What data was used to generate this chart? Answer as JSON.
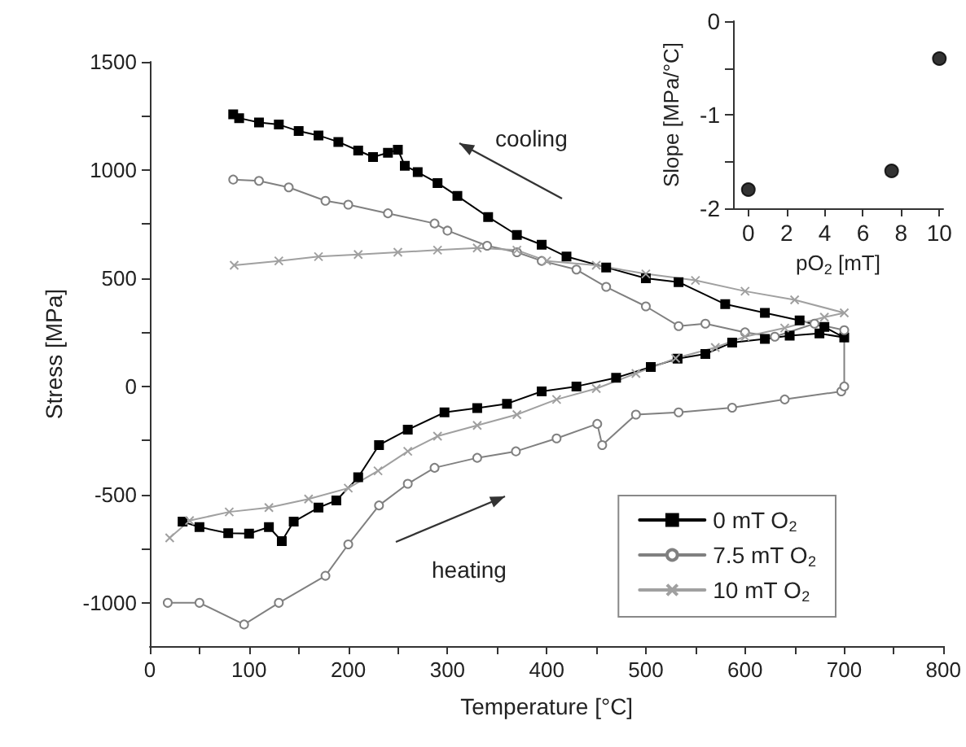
{
  "chart_data": [
    {
      "type": "line",
      "xlabel": "Temperature [°C]",
      "ylabel": "Stress [MPa]",
      "xlim": [
        0,
        800
      ],
      "ylim": [
        -1200,
        1500
      ],
      "xticks": [
        0,
        {
          "value": 50,
          "label": null
        },
        100,
        {
          "value": 150,
          "label": null
        },
        200,
        {
          "value": 250,
          "label": null
        },
        300,
        {
          "value": 350,
          "label": null
        },
        400,
        {
          "value": 450,
          "label": null
        },
        500,
        {
          "value": 550,
          "label": null
        },
        600,
        {
          "value": 650,
          "label": null
        },
        700,
        {
          "value": 750,
          "label": null
        },
        800
      ],
      "yticks": [
        -1000,
        {
          "value": -750,
          "label": null
        },
        -500,
        {
          "value": -250,
          "label": null
        },
        0,
        {
          "value": 250,
          "label": null
        },
        500,
        {
          "value": 750,
          "label": null
        },
        1000,
        {
          "value": 1250,
          "label": null
        },
        1500
      ],
      "grid": false,
      "legend": "bottom right",
      "annotations": [
        "cooling",
        "heating"
      ],
      "series": [
        {
          "name": "0 mT O$_{2}$",
          "color": "#000000",
          "marker": "square",
          "x": [
            33,
            50,
            79,
            100,
            120,
            133,
            145,
            170,
            188,
            210,
            231,
            260,
            297,
            330,
            360,
            395,
            430,
            470,
            505,
            532,
            560,
            587,
            620,
            645,
            675,
            700,
            680,
            655,
            620,
            580,
            533,
            500,
            460,
            420,
            395,
            370,
            341,
            310,
            290,
            270,
            257,
            250,
            240,
            225,
            210,
            190,
            170,
            150,
            130,
            110,
            90,
            84
          ],
          "values": [
            -625,
            -650,
            -678,
            -680,
            -650,
            -715,
            -625,
            -560,
            -527,
            -420,
            -271,
            -200,
            -120,
            -100,
            -80,
            -23,
            0,
            40,
            90,
            128,
            150,
            203,
            220,
            235,
            245,
            226,
            275,
            305,
            340,
            380,
            482,
            500,
            550,
            600,
            655,
            700,
            783,
            880,
            940,
            990,
            1020,
            1094,
            1080,
            1060,
            1090,
            1130,
            1160,
            1180,
            1210,
            1220,
            1240,
            1257
          ]
        },
        {
          "name": "7.5 mT O$_{2}$",
          "color": "#808080",
          "marker": "circle",
          "x": [
            18,
            50,
            95,
            130,
            177,
            200,
            231,
            260,
            287,
            330,
            369,
            410,
            451,
            456,
            490,
            533,
            587,
            640,
            697,
            700,
            700,
            670,
            630,
            600,
            560,
            533,
            500,
            460,
            430,
            395,
            370,
            340,
            300,
            287,
            240,
            200,
            177,
            140,
            110,
            84
          ],
          "values": [
            -1000,
            -1000,
            -1100,
            -1000,
            -875,
            -730,
            -550,
            -450,
            -376,
            -330,
            -300,
            -240,
            -173,
            -271,
            -130,
            -120,
            -98,
            -60,
            -23,
            0,
            260,
            290,
            230,
            250,
            290,
            279,
            370,
            460,
            540,
            580,
            620,
            650,
            720,
            753,
            800,
            840,
            858,
            920,
            950,
            956
          ]
        },
        {
          "name": "10 mT O$_{2}$",
          "color": "#a0a0a0",
          "marker": "cross",
          "x": [
            20,
            40,
            80,
            120,
            160,
            200,
            230,
            260,
            290,
            330,
            370,
            410,
            450,
            490,
            530,
            570,
            600,
            640,
            680,
            700,
            650,
            600,
            550,
            500,
            450,
            400,
            370,
            330,
            290,
            250,
            210,
            170,
            130,
            85
          ],
          "values": [
            -700,
            -620,
            -580,
            -560,
            -520,
            -470,
            -390,
            -300,
            -230,
            -180,
            -130,
            -60,
            -10,
            60,
            130,
            180,
            230,
            270,
            320,
            340,
            400,
            440,
            490,
            520,
            560,
            580,
            630,
            640,
            630,
            620,
            610,
            600,
            580,
            560
          ]
        }
      ]
    },
    {
      "type": "scatter",
      "xlabel": "pO$_{2}$ [mT]",
      "ylabel": "Slope [MPa/°C]",
      "xlim": [
        -0.8,
        10.2
      ],
      "ylim": [
        -2,
        0
      ],
      "xticks": [
        0,
        2,
        4,
        6,
        8,
        10
      ],
      "yticks": [
        -2,
        {
          "value": -1.5,
          "label": null
        },
        -1,
        {
          "value": -0.5,
          "label": null
        },
        0
      ],
      "grid": false,
      "marker": "circle",
      "series": [
        {
          "color": "#000000",
          "x": [
            0,
            7.5,
            10
          ],
          "values": [
            -1.8,
            -1.6,
            -0.4
          ]
        }
      ]
    }
  ]
}
